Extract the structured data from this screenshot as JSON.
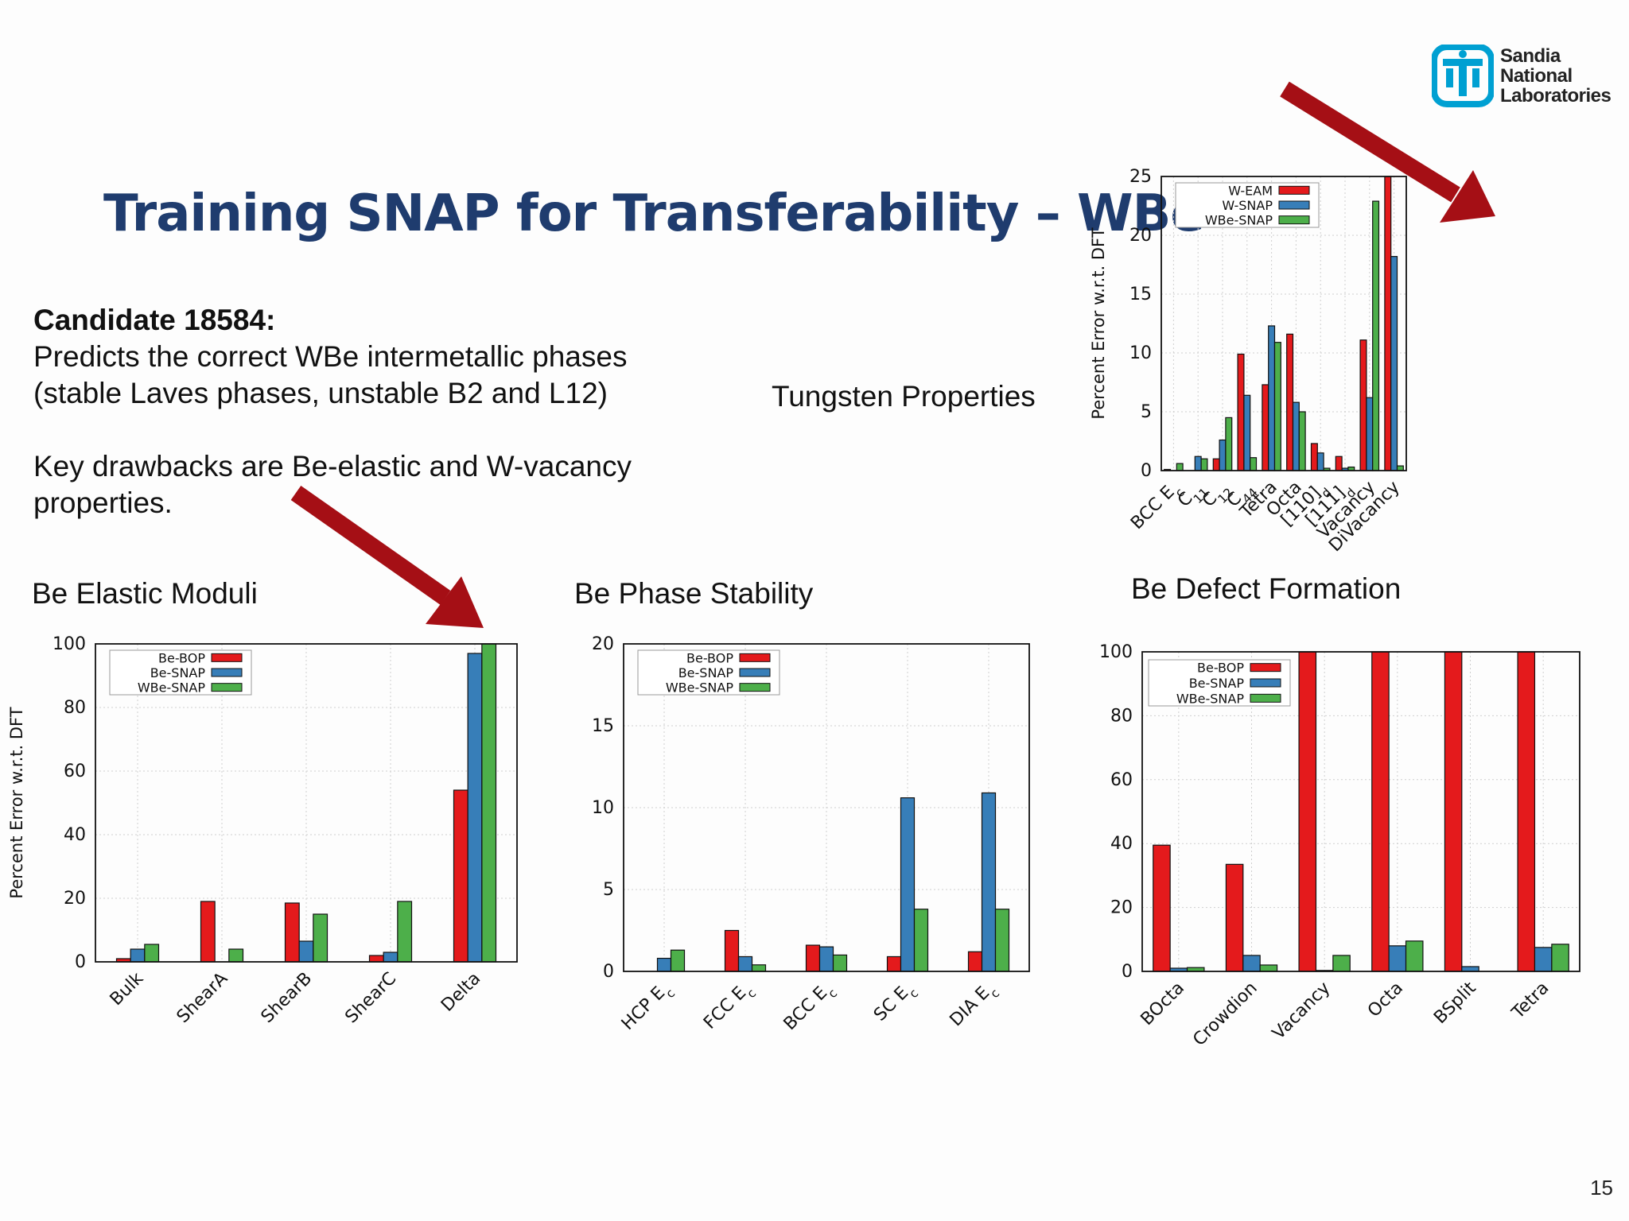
{
  "slide": {
    "title": "Training SNAP for Transferability – WBe",
    "candidate": "Candidate 18584:",
    "lines": [
      "Predicts the correct WBe intermetallic phases",
      "(stable Laves phases, unstable B2 and L12)",
      "",
      "Key drawbacks are Be-elastic and W-vacancy",
      "properties."
    ],
    "page_number": "15",
    "logo": {
      "line1": "Sandia",
      "line2": "National",
      "line3": "Laboratories",
      "icon": "sandia-thunderbird-icon",
      "color": "#00a0d2"
    }
  },
  "chart_data": [
    {
      "id": "tungsten",
      "type": "bar",
      "title": "Tungsten Properties",
      "ylabel": "Percent Error w.r.t. DFT",
      "ylim": [
        0,
        25
      ],
      "yticks": [
        0,
        5,
        10,
        15,
        20,
        25
      ],
      "categories": [
        "BCC Ec",
        "C11",
        "C12",
        "C44",
        "Tetra",
        "Octa",
        "[110]d",
        "[111]d",
        "Vacancy",
        "DiVacancy"
      ],
      "series": [
        {
          "name": "W-EAM",
          "color": "#e41a1c",
          "values": [
            0.1,
            0.0,
            1.0,
            9.9,
            7.3,
            11.6,
            2.3,
            1.2,
            11.1,
            25
          ]
        },
        {
          "name": "W-SNAP",
          "color": "#377eb8",
          "values": [
            0.0,
            1.2,
            2.6,
            6.4,
            12.3,
            5.8,
            1.5,
            0.2,
            6.2,
            18.2
          ]
        },
        {
          "name": "WBe-SNAP",
          "color": "#4daf4a",
          "values": [
            0.6,
            1.0,
            4.5,
            1.1,
            10.9,
            5.0,
            0.2,
            0.3,
            22.9,
            0.4
          ]
        }
      ],
      "legend": "top-left",
      "grid": true
    },
    {
      "id": "be-elastic",
      "type": "bar",
      "title": "Be Elastic Moduli",
      "ylabel": "Percent Error w.r.t. DFT",
      "ylim": [
        0,
        100
      ],
      "yticks": [
        0,
        20,
        40,
        60,
        80,
        100
      ],
      "categories": [
        "Bulk",
        "ShearA",
        "ShearB",
        "ShearC",
        "Delta"
      ],
      "series": [
        {
          "name": "Be-BOP",
          "color": "#e41a1c",
          "values": [
            1,
            19,
            18.5,
            2,
            54
          ]
        },
        {
          "name": "Be-SNAP",
          "color": "#377eb8",
          "values": [
            4,
            0,
            6.5,
            3,
            97
          ]
        },
        {
          "name": "WBe-SNAP",
          "color": "#4daf4a",
          "values": [
            5.5,
            4,
            15,
            19,
            100
          ]
        }
      ],
      "legend": "top-left",
      "grid": true
    },
    {
      "id": "be-phase",
      "type": "bar",
      "title": "Be Phase Stability",
      "ylabel": "",
      "ylim": [
        0,
        20
      ],
      "yticks": [
        0,
        5,
        10,
        15,
        20
      ],
      "categories": [
        "HCP Ec",
        "FCC Ec",
        "BCC Ec",
        "SC Ec",
        "DIA Ec"
      ],
      "series": [
        {
          "name": "Be-BOP",
          "color": "#e41a1c",
          "values": [
            0,
            2.5,
            1.6,
            0.9,
            1.2
          ]
        },
        {
          "name": "Be-SNAP",
          "color": "#377eb8",
          "values": [
            0.8,
            0.9,
            1.5,
            10.6,
            10.9
          ]
        },
        {
          "name": "WBe-SNAP",
          "color": "#4daf4a",
          "values": [
            1.3,
            0.4,
            1.0,
            3.8,
            3.8
          ]
        }
      ],
      "legend": "top-left",
      "grid": true
    },
    {
      "id": "be-defect",
      "type": "bar",
      "title": "Be Defect Formation",
      "ylabel": "",
      "ylim": [
        0,
        100
      ],
      "yticks": [
        0,
        20,
        40,
        60,
        80,
        100
      ],
      "categories": [
        "BOcta",
        "Crowdion",
        "Vacancy",
        "Octa",
        "BSplit",
        "Tetra"
      ],
      "series": [
        {
          "name": "Be-BOP",
          "color": "#e41a1c",
          "values": [
            39.5,
            33.5,
            100,
            100,
            100,
            100
          ]
        },
        {
          "name": "Be-SNAP",
          "color": "#377eb8",
          "values": [
            1,
            5,
            0.3,
            8,
            1.5,
            7.5
          ]
        },
        {
          "name": "WBe-SNAP",
          "color": "#4daf4a",
          "values": [
            1.2,
            2,
            5,
            9.5,
            0,
            8.5
          ]
        }
      ],
      "legend": "top-left",
      "grid": true
    }
  ]
}
